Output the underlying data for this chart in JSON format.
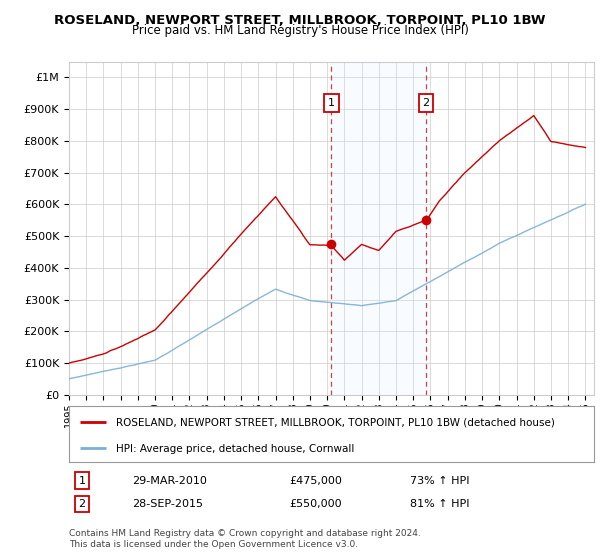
{
  "title": "ROSELAND, NEWPORT STREET, MILLBROOK, TORPOINT, PL10 1BW",
  "subtitle": "Price paid vs. HM Land Registry's House Price Index (HPI)",
  "ylim": [
    0,
    1050000
  ],
  "yticks": [
    0,
    100000,
    200000,
    300000,
    400000,
    500000,
    600000,
    700000,
    800000,
    900000,
    1000000
  ],
  "ytick_labels": [
    "£0",
    "£100K",
    "£200K",
    "£300K",
    "£400K",
    "£500K",
    "£600K",
    "£700K",
    "£800K",
    "£900K",
    "£1M"
  ],
  "property_color": "#cc0000",
  "hpi_color": "#7bafd4",
  "marker1_date": 2010.23,
  "marker1_price": 475000,
  "marker2_date": 2015.74,
  "marker2_price": 550000,
  "legend_property": "ROSELAND, NEWPORT STREET, MILLBROOK, TORPOINT, PL10 1BW (detached house)",
  "legend_hpi": "HPI: Average price, detached house, Cornwall",
  "footer": "Contains HM Land Registry data © Crown copyright and database right 2024.\nThis data is licensed under the Open Government Licence v3.0.",
  "background_color": "#ffffff",
  "shade_color": "#ddeeff",
  "ann1_date": "29-MAR-2010",
  "ann1_price": "£475,000",
  "ann1_hpi": "73% ↑ HPI",
  "ann2_date": "28-SEP-2015",
  "ann2_price": "£550,000",
  "ann2_hpi": "81% ↑ HPI"
}
